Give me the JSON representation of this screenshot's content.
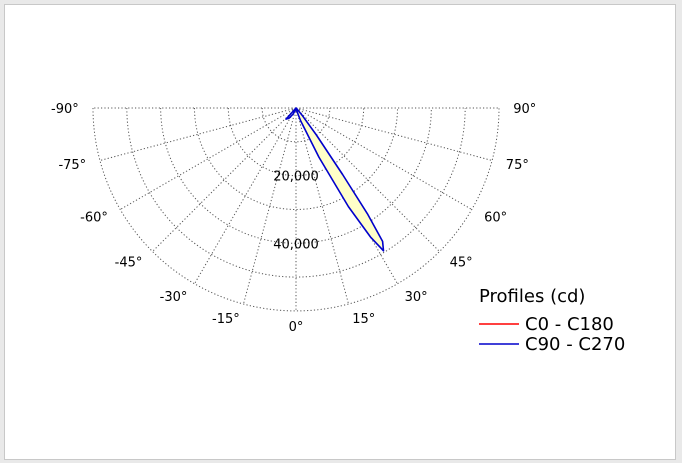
{
  "chart_data": {
    "type": "polar",
    "title": "",
    "angle_ticks": [
      {
        "angle": -90,
        "label": "-90°"
      },
      {
        "angle": -75,
        "label": "-75°"
      },
      {
        "angle": -60,
        "label": "-60°"
      },
      {
        "angle": -45,
        "label": "-45°"
      },
      {
        "angle": -30,
        "label": "-30°"
      },
      {
        "angle": -15,
        "label": "-15°"
      },
      {
        "angle": 0,
        "label": "0°"
      },
      {
        "angle": 15,
        "label": "15°"
      },
      {
        "angle": 30,
        "label": "30°"
      },
      {
        "angle": 45,
        "label": "45°"
      },
      {
        "angle": 60,
        "label": "60°"
      },
      {
        "angle": 75,
        "label": "75°"
      },
      {
        "angle": 90,
        "label": "90°"
      }
    ],
    "radial_max": 60000,
    "radial_rings": [
      {
        "value": 10000,
        "label": ""
      },
      {
        "value": 20000,
        "label": "20,000"
      },
      {
        "value": 30000,
        "label": ""
      },
      {
        "value": 40000,
        "label": "40,000"
      },
      {
        "value": 50000,
        "label": ""
      },
      {
        "value": 60000,
        "label": ""
      }
    ],
    "grid": "dotted",
    "legend": {
      "title": "Profiles (cd)",
      "position": "right",
      "items": [
        {
          "name": "C0 - C180",
          "color": "#ff0000"
        },
        {
          "name": "C90 - C270",
          "color": "#0000cc"
        }
      ]
    },
    "series": [
      {
        "name": "C0 - C180",
        "color": "#ff0000",
        "points": []
      },
      {
        "name": "C90 - C270",
        "color": "#0000cc",
        "fill": "#ffffc8",
        "points": [
          {
            "angle": -42,
            "value": 4400
          },
          {
            "angle": -34,
            "value": 3600
          },
          {
            "angle": -25,
            "value": 2000
          },
          {
            "angle": 0,
            "value": 300
          },
          {
            "angle": 20,
            "value": 4000
          },
          {
            "angle": 25,
            "value": 16000
          },
          {
            "angle": 28,
            "value": 33000
          },
          {
            "angle": 30,
            "value": 44000
          },
          {
            "angle": 31.5,
            "value": 49500
          },
          {
            "angle": 33,
            "value": 47000
          },
          {
            "angle": 34,
            "value": 38000
          },
          {
            "angle": 35,
            "value": 24000
          },
          {
            "angle": 37,
            "value": 10000
          },
          {
            "angle": 40,
            "value": 3000
          },
          {
            "angle": 45,
            "value": 500
          }
        ]
      }
    ]
  }
}
